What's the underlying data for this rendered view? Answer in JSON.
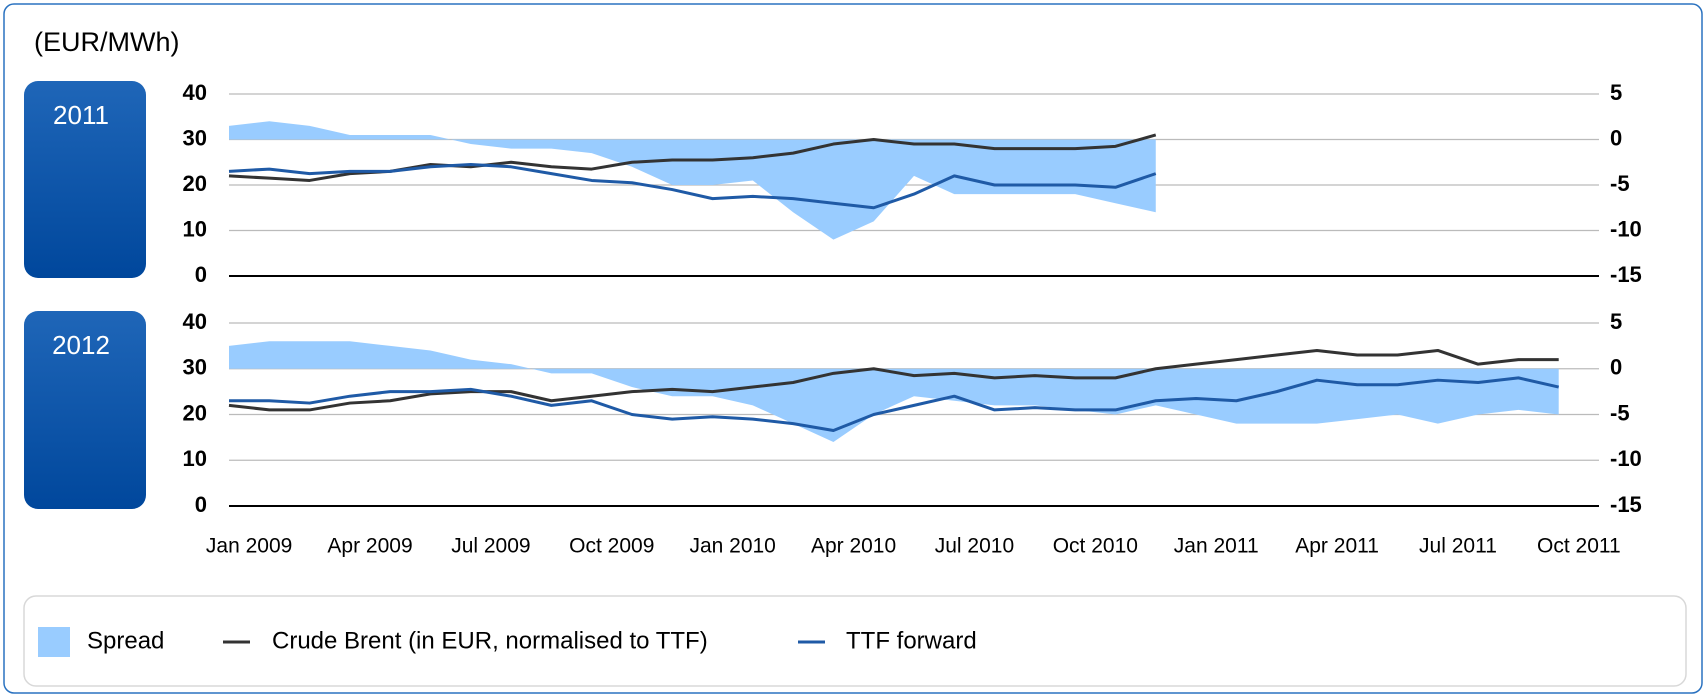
{
  "unit_label": "(EUR/MWh)",
  "chart_data": [
    {
      "type": "line",
      "title": "2011",
      "x": [
        "2009-01",
        "2009-02",
        "2009-03",
        "2009-04",
        "2009-05",
        "2009-06",
        "2009-07",
        "2009-08",
        "2009-09",
        "2009-10",
        "2009-11",
        "2009-12",
        "2010-01",
        "2010-02",
        "2010-03",
        "2010-04",
        "2010-05",
        "2010-06",
        "2010-07",
        "2010-08",
        "2010-09",
        "2010-10",
        "2010-11",
        "2010-12"
      ],
      "series": [
        {
          "name": "Spread",
          "kind": "area",
          "axis": "y2",
          "color": "#99ccff",
          "values": [
            1.5,
            2,
            1.5,
            0.5,
            0.5,
            0.5,
            -0.5,
            -1,
            -1,
            -1.5,
            -3,
            -5,
            -5,
            -4.5,
            -8,
            -11,
            -9,
            -4,
            -6,
            -6,
            -6,
            -6,
            -7,
            -8
          ]
        },
        {
          "name": "Crude Brent (in EUR, normalised to TTF)",
          "color": "#333333",
          "values": [
            22,
            21.5,
            21,
            22.5,
            23,
            24.5,
            24,
            25,
            24,
            23.5,
            25,
            25.5,
            25.5,
            26,
            27,
            29,
            30,
            29,
            29,
            28,
            28,
            28,
            28.5,
            31
          ]
        },
        {
          "name": "TTF forward",
          "color": "#1f5aa6",
          "values": [
            23,
            23.5,
            22.5,
            23,
            23,
            24,
            24.5,
            24,
            22.5,
            21,
            20.5,
            19,
            17,
            17.5,
            17,
            16,
            15,
            18,
            22,
            20,
            20,
            20,
            19.5,
            22.5
          ]
        }
      ],
      "xlim": [
        "2009-01",
        "2011-11"
      ],
      "ylim": [
        0,
        40
      ],
      "yticks": [
        0,
        10,
        20,
        30,
        40
      ],
      "y2lim": [
        -15,
        5
      ],
      "y2ticks": [
        -15,
        -10,
        -5,
        0,
        5
      ],
      "grid": true
    },
    {
      "type": "line",
      "title": "2012",
      "x": [
        "2009-01",
        "2009-02",
        "2009-03",
        "2009-04",
        "2009-05",
        "2009-06",
        "2009-07",
        "2009-08",
        "2009-09",
        "2009-10",
        "2009-11",
        "2009-12",
        "2010-01",
        "2010-02",
        "2010-03",
        "2010-04",
        "2010-05",
        "2010-06",
        "2010-07",
        "2010-08",
        "2010-09",
        "2010-10",
        "2010-11",
        "2010-12",
        "2011-01",
        "2011-02",
        "2011-03",
        "2011-04",
        "2011-05",
        "2011-06",
        "2011-07",
        "2011-08",
        "2011-09",
        "2011-10"
      ],
      "series": [
        {
          "name": "Spread",
          "kind": "area",
          "axis": "y2",
          "color": "#99ccff",
          "values": [
            2.5,
            3,
            3,
            3,
            2.5,
            2,
            1,
            0.5,
            -0.5,
            -0.5,
            -2,
            -3,
            -3,
            -4,
            -6,
            -8,
            -5,
            -3,
            -3.5,
            -4,
            -4,
            -4.5,
            -5,
            -4,
            -5,
            -6,
            -6,
            -6,
            -5.5,
            -5,
            -6,
            -5,
            -4.5,
            -5
          ]
        },
        {
          "name": "Crude Brent (in EUR, normalised to TTF)",
          "color": "#333333",
          "values": [
            22,
            21,
            21,
            22.5,
            23,
            24.5,
            25,
            25,
            23,
            24,
            25,
            25.5,
            25,
            26,
            27,
            29,
            30,
            28.5,
            29,
            28,
            28.5,
            28,
            28,
            30,
            31,
            32,
            33,
            34,
            33,
            33,
            34,
            31,
            32,
            32
          ]
        },
        {
          "name": "TTF forward",
          "color": "#1f5aa6",
          "values": [
            23,
            23,
            22.5,
            24,
            25,
            25,
            25.5,
            24,
            22,
            23,
            20,
            19,
            19.5,
            19,
            18,
            16.5,
            20,
            22,
            24,
            21,
            21.5,
            21,
            21,
            23,
            23.5,
            23,
            25,
            27.5,
            26.5,
            26.5,
            27.5,
            27,
            28,
            26
          ]
        }
      ],
      "xlim": [
        "2009-01",
        "2011-11"
      ],
      "xticks": [
        {
          "value": "2009-01",
          "label": "Jan 2009"
        },
        {
          "value": "2009-04",
          "label": "Apr 2009"
        },
        {
          "value": "2009-07",
          "label": "Jul 2009"
        },
        {
          "value": "2009-10",
          "label": "Oct 2009"
        },
        {
          "value": "2010-01",
          "label": "Jan 2010"
        },
        {
          "value": "2010-04",
          "label": "Apr 2010"
        },
        {
          "value": "2010-07",
          "label": "Jul 2010"
        },
        {
          "value": "2010-10",
          "label": "Oct 2010"
        },
        {
          "value": "2011-01",
          "label": "Jan 2011"
        },
        {
          "value": "2011-04",
          "label": "Apr 2011"
        },
        {
          "value": "2011-07",
          "label": "Jul 2011"
        },
        {
          "value": "2011-10",
          "label": "Oct 2011"
        }
      ],
      "ylim": [
        0,
        40
      ],
      "yticks": [
        0,
        10,
        20,
        30,
        40
      ],
      "y2lim": [
        -15,
        5
      ],
      "y2ticks": [
        -15,
        -10,
        -5,
        0,
        5
      ],
      "grid": true
    }
  ]
}
